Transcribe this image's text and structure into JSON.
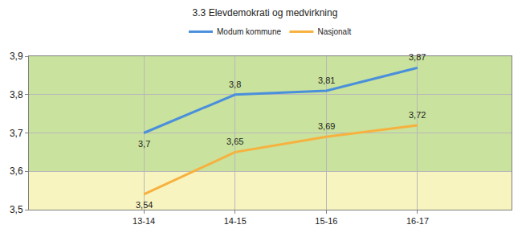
{
  "chart_data": {
    "type": "line",
    "title": "3.3 Elevdemokrati og medvirkning",
    "categories": [
      "13-14",
      "14-15",
      "15-16",
      "16-17"
    ],
    "series": [
      {
        "name": "Modum kommune",
        "color": "#4a8fdc",
        "values": [
          3.7,
          3.8,
          3.81,
          3.87
        ],
        "value_labels": [
          "3,7",
          "3,8",
          "3,81",
          "3,87"
        ]
      },
      {
        "name": "Nasjonalt",
        "color": "#f7b13e",
        "values": [
          3.54,
          3.65,
          3.69,
          3.72
        ],
        "value_labels": [
          "3,54",
          "3,65",
          "3,69",
          "3,72"
        ]
      }
    ],
    "ylim": [
      3.5,
      3.9
    ],
    "yticks": [
      {
        "value": 3.5,
        "label": "3,5"
      },
      {
        "value": 3.6,
        "label": "3,6"
      },
      {
        "value": 3.7,
        "label": "3,7"
      },
      {
        "value": 3.8,
        "label": "3,8"
      },
      {
        "value": 3.9,
        "label": "3,9"
      }
    ],
    "grid": true,
    "legend": "top",
    "data_labels": true,
    "bands": [
      {
        "from": 3.5,
        "to": 3.6,
        "color": "#f8f4c0"
      },
      {
        "from": 3.6,
        "to": 3.9,
        "color": "#c9e29d"
      }
    ]
  }
}
